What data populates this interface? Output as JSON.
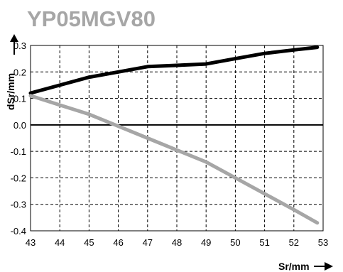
{
  "chart_data": {
    "type": "line",
    "title": "YP05MGV80",
    "xlabel": "Sr/mm",
    "ylabel": "dSr/mm",
    "xlim": [
      43,
      53
    ],
    "ylim": [
      -0.4,
      0.3
    ],
    "grid": true,
    "x_ticks": [
      43,
      44,
      45,
      46,
      47,
      48,
      49,
      50,
      51,
      52,
      53
    ],
    "y_ticks": [
      0.3,
      0.2,
      0.1,
      0.0,
      -0.1,
      -0.2,
      -0.3,
      -0.4
    ],
    "x_tick_labels": [
      "43",
      "44",
      "45",
      "46",
      "47",
      "48",
      "49",
      "50",
      "51",
      "52",
      "53"
    ],
    "y_tick_labels": [
      "0.3",
      "0.2",
      "0.1",
      "0.0",
      "-0.1",
      "-0.2",
      "-0.3",
      "-0.4"
    ],
    "series": [
      {
        "color": "#000000",
        "x": [
          43,
          44,
          45,
          46,
          47,
          48,
          49,
          50,
          51,
          52,
          52.8
        ],
        "y": [
          0.12,
          0.15,
          0.18,
          0.2,
          0.22,
          0.225,
          0.23,
          0.25,
          0.27,
          0.283,
          0.293
        ]
      },
      {
        "color": "#a6a6a6",
        "x": [
          43,
          44,
          45,
          46,
          47,
          48,
          49,
          50,
          51,
          52,
          52.8
        ],
        "y": [
          0.11,
          0.075,
          0.04,
          -0.005,
          -0.05,
          -0.095,
          -0.14,
          -0.2,
          -0.26,
          -0.32,
          -0.37
        ]
      }
    ]
  }
}
